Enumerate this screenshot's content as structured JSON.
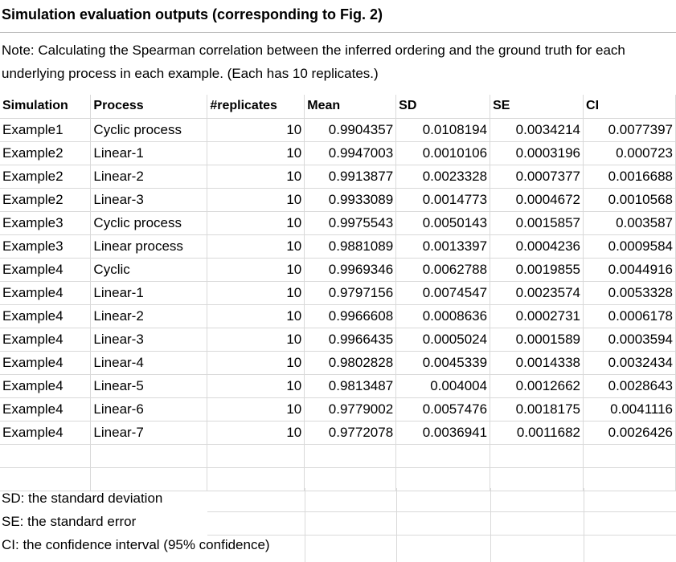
{
  "title": "Simulation evaluation outputs (corresponding to Fig. 2)",
  "note": "Note: Calculating the Spearman correlation between the inferred ordering and the ground truth for each underlying process in each example. (Each has 10 replicates.)",
  "table": {
    "headers": [
      "Simulation",
      "Process",
      "#replicates",
      "Mean",
      "SD",
      "SE",
      "CI"
    ],
    "rows": [
      [
        "Example1",
        "Cyclic process",
        "10",
        "0.9904357",
        "0.0108194",
        "0.0034214",
        "0.0077397"
      ],
      [
        "Example2",
        "Linear-1",
        "10",
        "0.9947003",
        "0.0010106",
        "0.0003196",
        "0.000723"
      ],
      [
        "Example2",
        "Linear-2",
        "10",
        "0.9913877",
        "0.0023328",
        "0.0007377",
        "0.0016688"
      ],
      [
        "Example2",
        "Linear-3",
        "10",
        "0.9933089",
        "0.0014773",
        "0.0004672",
        "0.0010568"
      ],
      [
        "Example3",
        "Cyclic process",
        "10",
        "0.9975543",
        "0.0050143",
        "0.0015857",
        "0.003587"
      ],
      [
        "Example3",
        "Linear process",
        "10",
        "0.9881089",
        "0.0013397",
        "0.0004236",
        "0.0009584"
      ],
      [
        "Example4",
        "Cyclic",
        "10",
        "0.9969346",
        "0.0062788",
        "0.0019855",
        "0.0044916"
      ],
      [
        "Example4",
        "Linear-1",
        "10",
        "0.9797156",
        "0.0074547",
        "0.0023574",
        "0.0053328"
      ],
      [
        "Example4",
        "Linear-2",
        "10",
        "0.9966608",
        "0.0008636",
        "0.0002731",
        "0.0006178"
      ],
      [
        "Example4",
        "Linear-3",
        "10",
        "0.9966435",
        "0.0005024",
        "0.0001589",
        "0.0003594"
      ],
      [
        "Example4",
        "Linear-4",
        "10",
        "0.9802828",
        "0.0045339",
        "0.0014338",
        "0.0032434"
      ],
      [
        "Example4",
        "Linear-5",
        "10",
        "0.9813487",
        "0.004004",
        "0.0012662",
        "0.0028643"
      ],
      [
        "Example4",
        "Linear-6",
        "10",
        "0.9779002",
        "0.0057476",
        "0.0018175",
        "0.0041116"
      ],
      [
        "Example4",
        "Linear-7",
        "10",
        "0.9772078",
        "0.0036941",
        "0.0011682",
        "0.0026426"
      ]
    ]
  },
  "footnotes": [
    "SD: the standard deviation",
    "SE: the standard error",
    "CI: the confidence interval (95% confidence)"
  ],
  "colors": {
    "gridline": "#d9d9d9",
    "text": "#000000",
    "background": "#ffffff"
  }
}
